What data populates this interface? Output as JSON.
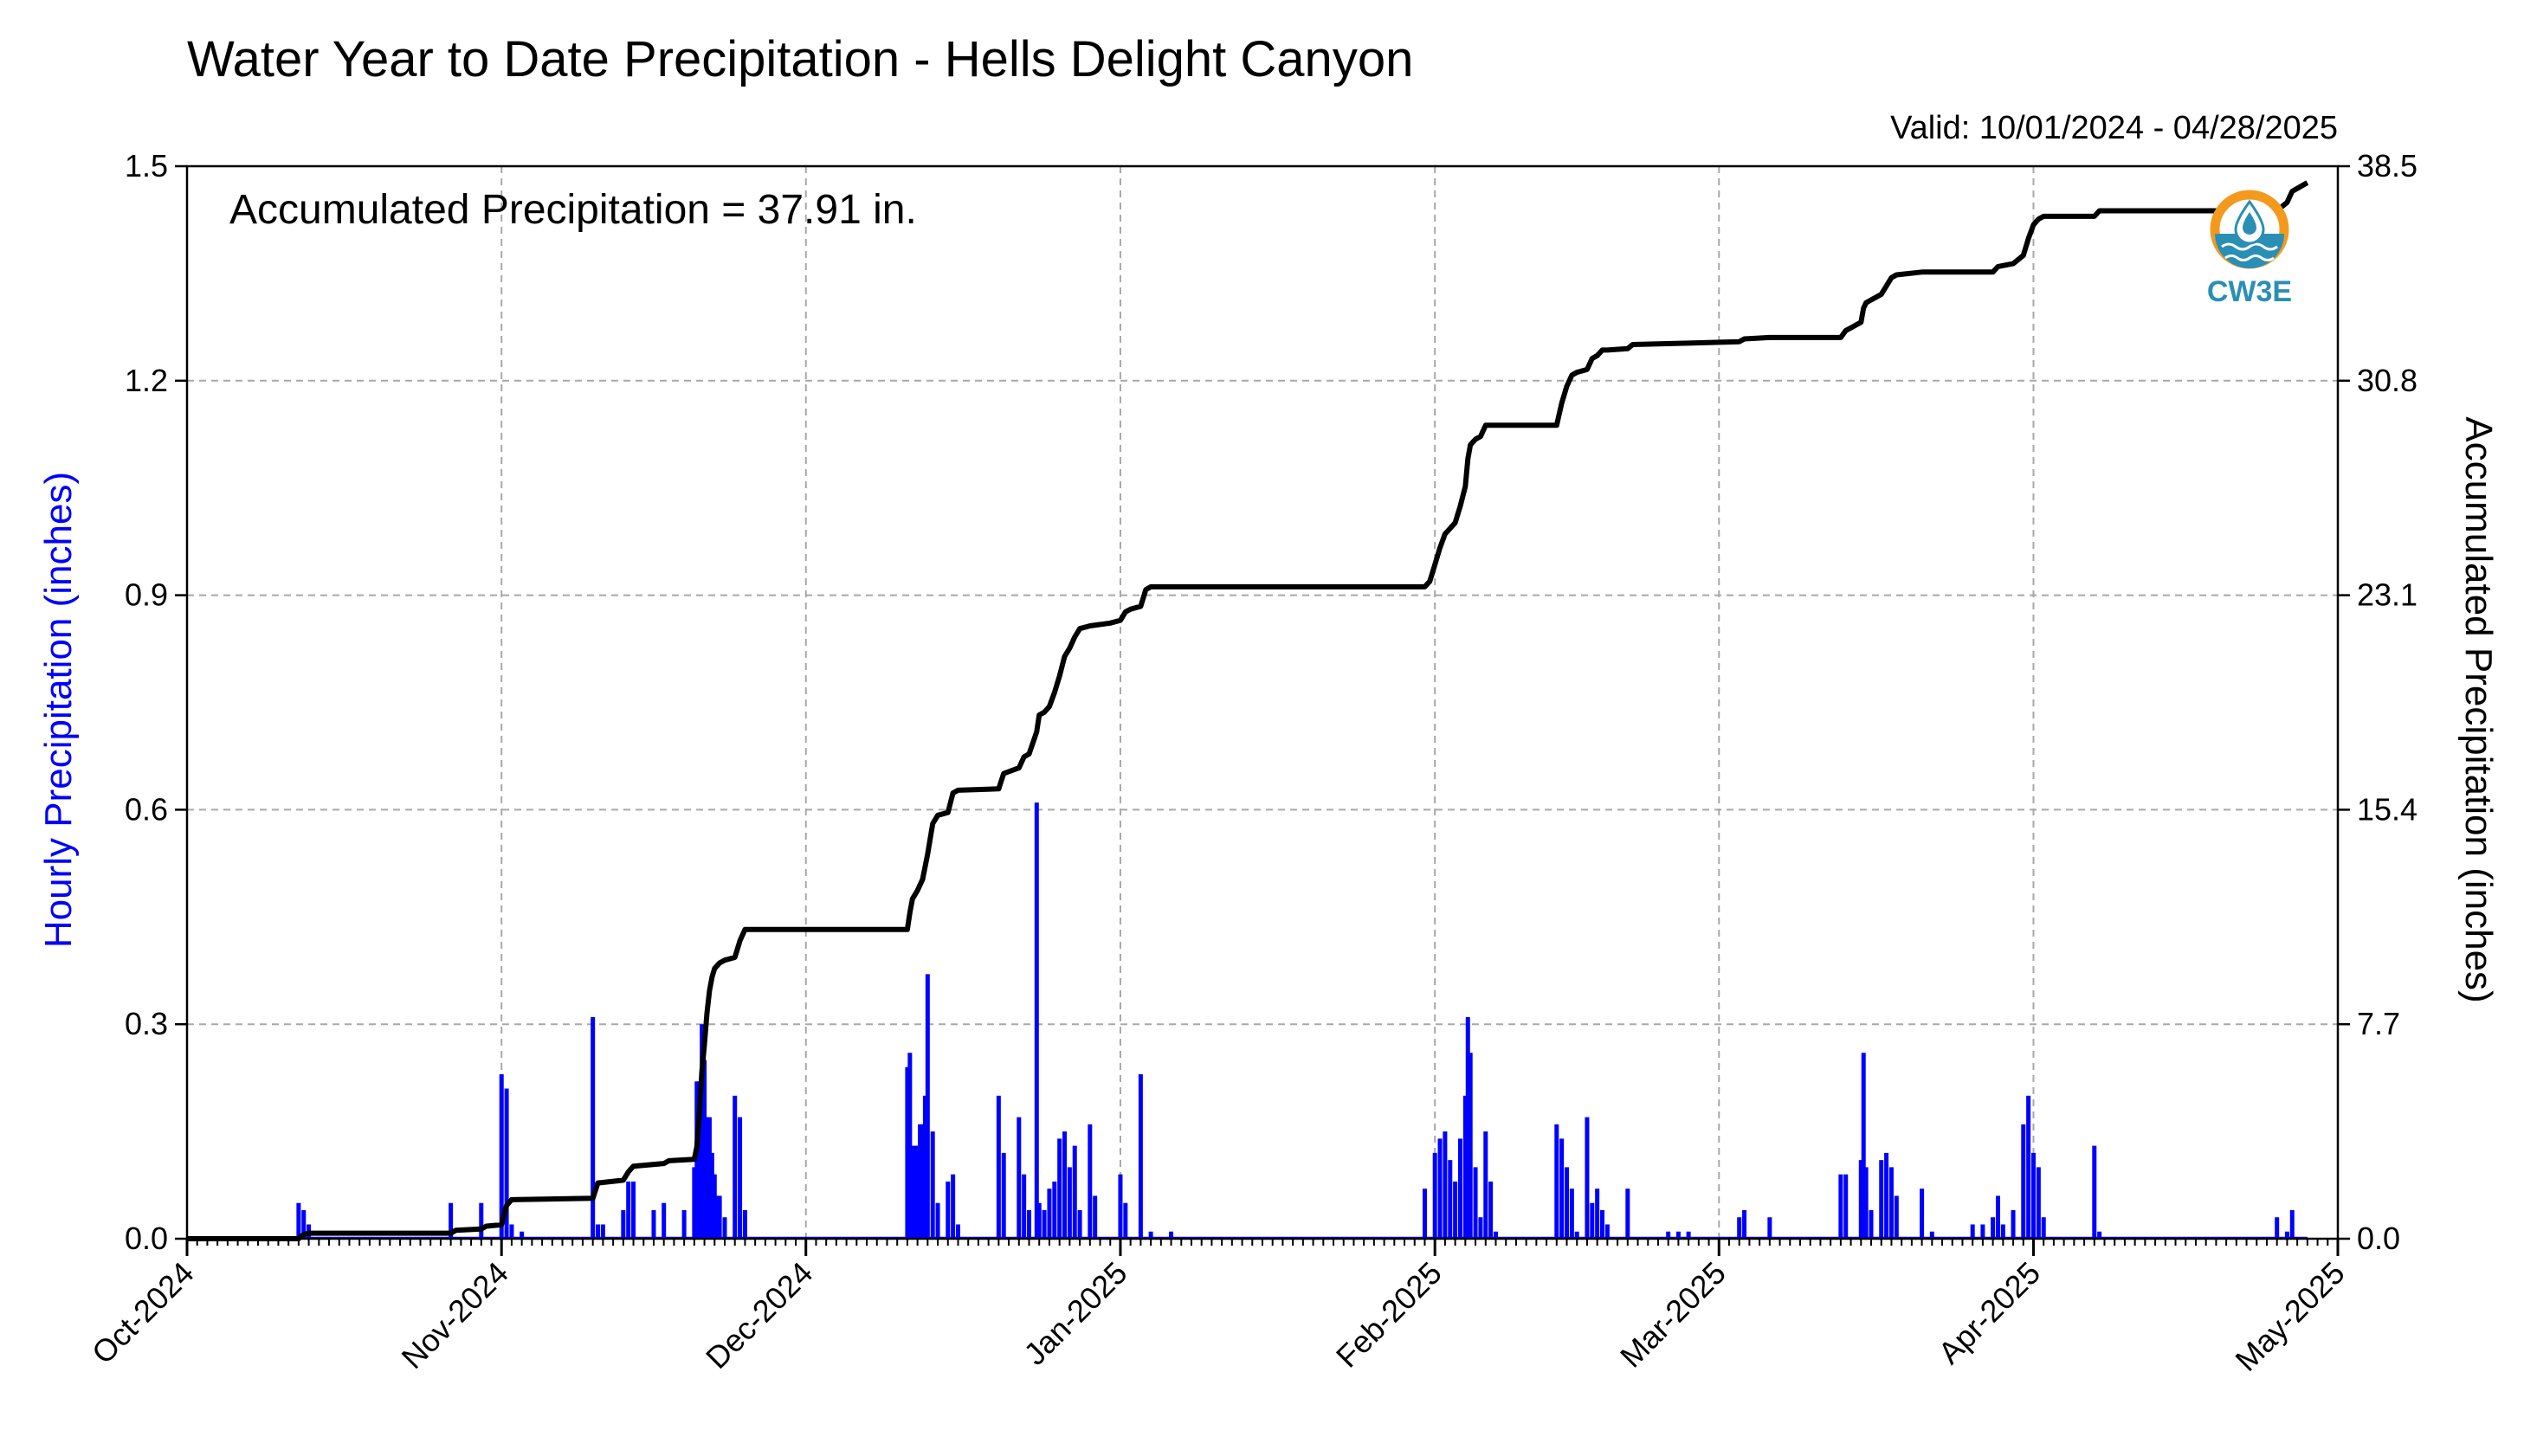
{
  "chart_data": {
    "type": "bar",
    "title": "Water Year to Date Precipitation - Hells Delight Canyon",
    "subtitle": "Valid: 10/01/2024 - 04/28/2025",
    "annotation": "Accumulated Precipitation = 37.91 in.",
    "ylabel_left": "Hourly Precipitation (inches)",
    "ylabel_right": "Accumulated Precipitation (inches)",
    "x_range": [
      "2024-10-01",
      "2025-05-01"
    ],
    "ylim_left": [
      0.0,
      1.5
    ],
    "ylim_right": [
      0.0,
      38.5
    ],
    "yticks_left": [
      "0.0",
      "0.3",
      "0.6",
      "0.9",
      "1.2",
      "1.5"
    ],
    "yticks_right": [
      "0.0",
      "7.7",
      "15.4",
      "23.1",
      "30.8",
      "38.5"
    ],
    "xticks": [
      {
        "date": "2024-10-01",
        "label": "Oct-2024"
      },
      {
        "date": "2024-11-01",
        "label": "Nov-2024"
      },
      {
        "date": "2024-12-01",
        "label": "Dec-2024"
      },
      {
        "date": "2025-01-01",
        "label": "Jan-2025"
      },
      {
        "date": "2025-02-01",
        "label": "Feb-2025"
      },
      {
        "date": "2025-03-01",
        "label": "Mar-2025"
      },
      {
        "date": "2025-04-01",
        "label": "Apr-2025"
      },
      {
        "date": "2025-05-01",
        "label": "May-2025"
      }
    ],
    "grid": true,
    "logo_text": "CW3E",
    "colors": {
      "hourly": "#0000ff",
      "accumulated": "#000000",
      "grid": "#a8a8a8",
      "logo_orange": "#f39a1e",
      "logo_blue": "#2a8fb5"
    },
    "series": [
      {
        "name": "Hourly Precipitation (inches)",
        "type": "bar",
        "axis": "left",
        "points": [
          [
            "2024-10-12",
            0.05
          ],
          [
            "2024-10-12T12",
            0.04
          ],
          [
            "2024-10-13",
            0.02
          ],
          [
            "2024-10-27",
            0.05
          ],
          [
            "2024-10-30",
            0.05
          ],
          [
            "2024-11-01",
            0.23
          ],
          [
            "2024-11-01T12",
            0.21
          ],
          [
            "2024-11-02",
            0.02
          ],
          [
            "2024-11-03",
            0.01
          ],
          [
            "2024-11-10",
            0.31
          ],
          [
            "2024-11-10T12",
            0.02
          ],
          [
            "2024-11-11",
            0.02
          ],
          [
            "2024-11-13",
            0.04
          ],
          [
            "2024-11-13T12",
            0.08
          ],
          [
            "2024-11-14",
            0.08
          ],
          [
            "2024-11-16",
            0.04
          ],
          [
            "2024-11-17",
            0.05
          ],
          [
            "2024-11-19",
            0.04
          ],
          [
            "2024-11-20",
            0.1
          ],
          [
            "2024-11-20T06",
            0.22
          ],
          [
            "2024-11-20T12",
            0.22
          ],
          [
            "2024-11-20T18",
            0.3
          ],
          [
            "2024-11-21",
            0.25
          ],
          [
            "2024-11-21T06",
            0.17
          ],
          [
            "2024-11-21T12",
            0.17
          ],
          [
            "2024-11-21T18",
            0.12
          ],
          [
            "2024-11-22",
            0.09
          ],
          [
            "2024-11-22T06",
            0.06
          ],
          [
            "2024-11-22T12",
            0.06
          ],
          [
            "2024-11-23",
            0.03
          ],
          [
            "2024-11-24",
            0.2
          ],
          [
            "2024-11-24T12",
            0.17
          ],
          [
            "2024-11-25",
            0.04
          ],
          [
            "2024-12-11",
            0.24
          ],
          [
            "2024-12-11T06",
            0.26
          ],
          [
            "2024-12-11T12",
            0.13
          ],
          [
            "2024-12-11T18",
            0.13
          ],
          [
            "2024-12-12",
            0.13
          ],
          [
            "2024-12-12T06",
            0.16
          ],
          [
            "2024-12-12T12",
            0.16
          ],
          [
            "2024-12-12T18",
            0.2
          ],
          [
            "2024-12-13",
            0.37
          ],
          [
            "2024-12-13T12",
            0.15
          ],
          [
            "2024-12-14",
            0.05
          ],
          [
            "2024-12-15",
            0.08
          ],
          [
            "2024-12-15T12",
            0.09
          ],
          [
            "2024-12-16",
            0.02
          ],
          [
            "2024-12-20",
            0.2
          ],
          [
            "2024-12-20T12",
            0.12
          ],
          [
            "2024-12-22",
            0.17
          ],
          [
            "2024-12-22T12",
            0.09
          ],
          [
            "2024-12-23",
            0.04
          ],
          [
            "2024-12-23T18",
            0.61
          ],
          [
            "2024-12-24",
            0.05
          ],
          [
            "2024-12-24T12",
            0.04
          ],
          [
            "2024-12-25",
            0.07
          ],
          [
            "2024-12-25T12",
            0.08
          ],
          [
            "2024-12-26",
            0.14
          ],
          [
            "2024-12-26T12",
            0.15
          ],
          [
            "2024-12-27",
            0.1
          ],
          [
            "2024-12-27T12",
            0.13
          ],
          [
            "2024-12-28",
            0.04
          ],
          [
            "2024-12-29",
            0.16
          ],
          [
            "2024-12-29T12",
            0.06
          ],
          [
            "2025-01-01",
            0.09
          ],
          [
            "2025-01-01T12",
            0.05
          ],
          [
            "2025-01-03",
            0.23
          ],
          [
            "2025-01-04",
            0.01
          ],
          [
            "2025-01-06",
            0.01
          ],
          [
            "2025-01-31",
            0.07
          ],
          [
            "2025-02-01",
            0.12
          ],
          [
            "2025-02-01T12",
            0.14
          ],
          [
            "2025-02-02",
            0.15
          ],
          [
            "2025-02-02T12",
            0.11
          ],
          [
            "2025-02-03",
            0.08
          ],
          [
            "2025-02-03T12",
            0.14
          ],
          [
            "2025-02-04",
            0.2
          ],
          [
            "2025-02-04T06",
            0.31
          ],
          [
            "2025-02-04T12",
            0.26
          ],
          [
            "2025-02-05",
            0.1
          ],
          [
            "2025-02-05T12",
            0.03
          ],
          [
            "2025-02-06",
            0.15
          ],
          [
            "2025-02-06T12",
            0.08
          ],
          [
            "2025-02-07",
            0.01
          ],
          [
            "2025-02-13",
            0.16
          ],
          [
            "2025-02-13T12",
            0.14
          ],
          [
            "2025-02-14",
            0.1
          ],
          [
            "2025-02-14T12",
            0.07
          ],
          [
            "2025-02-15",
            0.01
          ],
          [
            "2025-02-16",
            0.17
          ],
          [
            "2025-02-16T12",
            0.05
          ],
          [
            "2025-02-17",
            0.07
          ],
          [
            "2025-02-17T12",
            0.04
          ],
          [
            "2025-02-18",
            0.02
          ],
          [
            "2025-02-20",
            0.07
          ],
          [
            "2025-02-24",
            0.01
          ],
          [
            "2025-02-25",
            0.01
          ],
          [
            "2025-02-26",
            0.01
          ],
          [
            "2025-03-03",
            0.03
          ],
          [
            "2025-03-03T12",
            0.04
          ],
          [
            "2025-03-06",
            0.03
          ],
          [
            "2025-03-13",
            0.09
          ],
          [
            "2025-03-13T12",
            0.09
          ],
          [
            "2025-03-15",
            0.11
          ],
          [
            "2025-03-15T06",
            0.26
          ],
          [
            "2025-03-15T12",
            0.1
          ],
          [
            "2025-03-16",
            0.04
          ],
          [
            "2025-03-17",
            0.11
          ],
          [
            "2025-03-17T12",
            0.12
          ],
          [
            "2025-03-18",
            0.1
          ],
          [
            "2025-03-18T12",
            0.06
          ],
          [
            "2025-03-21",
            0.07
          ],
          [
            "2025-03-22",
            0.01
          ],
          [
            "2025-03-26",
            0.02
          ],
          [
            "2025-03-27",
            0.02
          ],
          [
            "2025-03-28",
            0.03
          ],
          [
            "2025-03-28T12",
            0.06
          ],
          [
            "2025-03-29",
            0.02
          ],
          [
            "2025-03-30",
            0.04
          ],
          [
            "2025-03-31",
            0.16
          ],
          [
            "2025-03-31T12",
            0.2
          ],
          [
            "2025-04-01",
            0.12
          ],
          [
            "2025-04-01T12",
            0.1
          ],
          [
            "2025-04-02",
            0.03
          ],
          [
            "2025-04-07",
            0.13
          ],
          [
            "2025-04-07T12",
            0.01
          ],
          [
            "2025-04-25",
            0.03
          ],
          [
            "2025-04-26",
            0.01
          ],
          [
            "2025-04-26T12",
            0.04
          ]
        ]
      },
      {
        "name": "Accumulated Precipitation (inches)",
        "type": "line",
        "axis": "right",
        "points": [
          [
            "2024-10-01",
            0.0
          ],
          [
            "2024-10-12",
            0.0
          ],
          [
            "2024-10-12T12",
            0.15
          ],
          [
            "2024-10-13",
            0.2
          ],
          [
            "2024-10-27",
            0.2
          ],
          [
            "2024-10-27T12",
            0.3
          ],
          [
            "2024-10-30",
            0.35
          ],
          [
            "2024-10-30T12",
            0.45
          ],
          [
            "2024-11-01",
            0.5
          ],
          [
            "2024-11-01T12",
            1.2
          ],
          [
            "2024-11-02",
            1.4
          ],
          [
            "2024-11-10",
            1.45
          ],
          [
            "2024-11-10T12",
            2.0
          ],
          [
            "2024-11-13",
            2.1
          ],
          [
            "2024-11-13T12",
            2.4
          ],
          [
            "2024-11-14",
            2.6
          ],
          [
            "2024-11-17",
            2.7
          ],
          [
            "2024-11-17T12",
            2.8
          ],
          [
            "2024-11-20",
            2.85
          ],
          [
            "2024-11-20T06",
            3.3
          ],
          [
            "2024-11-20T12",
            4.5
          ],
          [
            "2024-11-20T18",
            6.0
          ],
          [
            "2024-11-21",
            7.0
          ],
          [
            "2024-11-21T06",
            8.1
          ],
          [
            "2024-11-21T12",
            8.9
          ],
          [
            "2024-11-21T18",
            9.4
          ],
          [
            "2024-11-22",
            9.7
          ],
          [
            "2024-11-22T12",
            9.9
          ],
          [
            "2024-11-23",
            10.0
          ],
          [
            "2024-11-24",
            10.1
          ],
          [
            "2024-11-24T12",
            10.7
          ],
          [
            "2024-11-25",
            11.1
          ],
          [
            "2024-12-11",
            11.1
          ],
          [
            "2024-12-11T06",
            11.7
          ],
          [
            "2024-12-11T12",
            12.2
          ],
          [
            "2024-12-12",
            12.5
          ],
          [
            "2024-12-12T12",
            12.9
          ],
          [
            "2024-12-13",
            13.8
          ],
          [
            "2024-12-13T12",
            14.9
          ],
          [
            "2024-12-14",
            15.2
          ],
          [
            "2024-12-15",
            15.3
          ],
          [
            "2024-12-15T12",
            16.0
          ],
          [
            "2024-12-16",
            16.1
          ],
          [
            "2024-12-20",
            16.15
          ],
          [
            "2024-12-20T12",
            16.7
          ],
          [
            "2024-12-22",
            16.9
          ],
          [
            "2024-12-22T12",
            17.3
          ],
          [
            "2024-12-23",
            17.4
          ],
          [
            "2024-12-23T18",
            18.2
          ],
          [
            "2024-12-24",
            18.8
          ],
          [
            "2024-12-24T12",
            18.9
          ],
          [
            "2024-12-25",
            19.1
          ],
          [
            "2024-12-25T12",
            19.6
          ],
          [
            "2024-12-26",
            20.2
          ],
          [
            "2024-12-26T12",
            20.9
          ],
          [
            "2024-12-27",
            21.2
          ],
          [
            "2024-12-27T12",
            21.6
          ],
          [
            "2024-12-28",
            21.9
          ],
          [
            "2024-12-29",
            22.0
          ],
          [
            "2024-12-31",
            22.1
          ],
          [
            "2025-01-01",
            22.2
          ],
          [
            "2025-01-01T12",
            22.5
          ],
          [
            "2025-01-02",
            22.6
          ],
          [
            "2025-01-03",
            22.7
          ],
          [
            "2025-01-03T12",
            23.3
          ],
          [
            "2025-01-04",
            23.4
          ],
          [
            "2025-01-31",
            23.4
          ],
          [
            "2025-01-31T12",
            23.6
          ],
          [
            "2025-02-01",
            24.2
          ],
          [
            "2025-02-01T12",
            24.8
          ],
          [
            "2025-02-02",
            25.3
          ],
          [
            "2025-02-02T12",
            25.5
          ],
          [
            "2025-02-03",
            25.7
          ],
          [
            "2025-02-03T12",
            26.3
          ],
          [
            "2025-02-04",
            27.0
          ],
          [
            "2025-02-04T06",
            28.0
          ],
          [
            "2025-02-04T12",
            28.5
          ],
          [
            "2025-02-05",
            28.7
          ],
          [
            "2025-02-05T12",
            28.8
          ],
          [
            "2025-02-06",
            29.2
          ],
          [
            "2025-02-06T12",
            29.2
          ],
          [
            "2025-02-13",
            29.2
          ],
          [
            "2025-02-13T12",
            30.0
          ],
          [
            "2025-02-14",
            30.6
          ],
          [
            "2025-02-14T12",
            31.0
          ],
          [
            "2025-02-15",
            31.1
          ],
          [
            "2025-02-16",
            31.2
          ],
          [
            "2025-02-16T12",
            31.6
          ],
          [
            "2025-02-17",
            31.7
          ],
          [
            "2025-02-17T12",
            31.9
          ],
          [
            "2025-02-18",
            31.9
          ],
          [
            "2025-02-20",
            31.95
          ],
          [
            "2025-02-20T12",
            32.1
          ],
          [
            "2025-02-26",
            32.15
          ],
          [
            "2025-03-03",
            32.2
          ],
          [
            "2025-03-03T12",
            32.3
          ],
          [
            "2025-03-06",
            32.35
          ],
          [
            "2025-03-13",
            32.35
          ],
          [
            "2025-03-13T12",
            32.6
          ],
          [
            "2025-03-14",
            32.7
          ],
          [
            "2025-03-15",
            32.9
          ],
          [
            "2025-03-15T06",
            33.4
          ],
          [
            "2025-03-15T12",
            33.6
          ],
          [
            "2025-03-16",
            33.7
          ],
          [
            "2025-03-17",
            33.9
          ],
          [
            "2025-03-17T12",
            34.2
          ],
          [
            "2025-03-18",
            34.5
          ],
          [
            "2025-03-18T12",
            34.6
          ],
          [
            "2025-03-21",
            34.7
          ],
          [
            "2025-03-28",
            34.7
          ],
          [
            "2025-03-28T12",
            34.9
          ],
          [
            "2025-03-30",
            35.0
          ],
          [
            "2025-03-31",
            35.3
          ],
          [
            "2025-03-31T12",
            35.9
          ],
          [
            "2025-04-01",
            36.4
          ],
          [
            "2025-04-01T12",
            36.6
          ],
          [
            "2025-04-02",
            36.7
          ],
          [
            "2025-04-07",
            36.7
          ],
          [
            "2025-04-07T12",
            36.9
          ],
          [
            "2025-04-25",
            36.9
          ],
          [
            "2025-04-26",
            37.2
          ],
          [
            "2025-04-26T12",
            37.6
          ],
          [
            "2025-04-28",
            37.91
          ]
        ]
      }
    ]
  }
}
